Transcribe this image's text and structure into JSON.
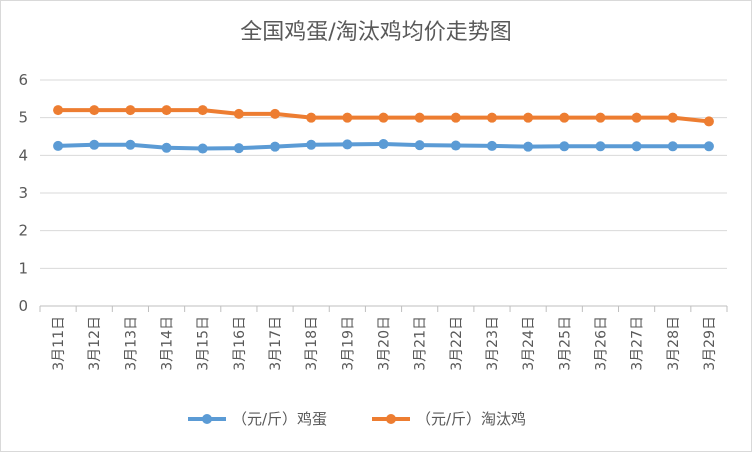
{
  "chart_data": {
    "type": "line",
    "title": "全国鸡蛋/淘汰鸡均价走势图",
    "xlabel": "",
    "ylabel": "",
    "categories": [
      "3月11日",
      "3月12日",
      "3月13日",
      "3月14日",
      "3月15日",
      "3月16日",
      "3月17日",
      "3月18日",
      "3月19日",
      "3月20日",
      "3月21日",
      "3月22日",
      "3月23日",
      "3月24日",
      "3月25日",
      "3月26日",
      "3月27日",
      "3月28日",
      "3月29日"
    ],
    "ylim": [
      0,
      6
    ],
    "yticks": [
      "0",
      "1",
      "2",
      "3",
      "4",
      "5",
      "6"
    ],
    "grid": true,
    "legend_position": "bottom",
    "series": [
      {
        "name": "（元/斤）鸡蛋",
        "color": "#5b9bd5",
        "values": [
          4.25,
          4.28,
          4.28,
          4.2,
          4.18,
          4.19,
          4.23,
          4.28,
          4.29,
          4.3,
          4.27,
          4.26,
          4.25,
          4.23,
          4.24,
          4.24,
          4.24,
          4.24,
          4.24
        ]
      },
      {
        "name": "（元/斤）淘汰鸡",
        "color": "#ed7d31",
        "values": [
          5.2,
          5.2,
          5.2,
          5.2,
          5.2,
          5.1,
          5.1,
          5.0,
          5.0,
          5.0,
          5.0,
          5.0,
          5.0,
          5.0,
          5.0,
          5.0,
          5.0,
          5.0,
          4.9
        ]
      }
    ]
  }
}
